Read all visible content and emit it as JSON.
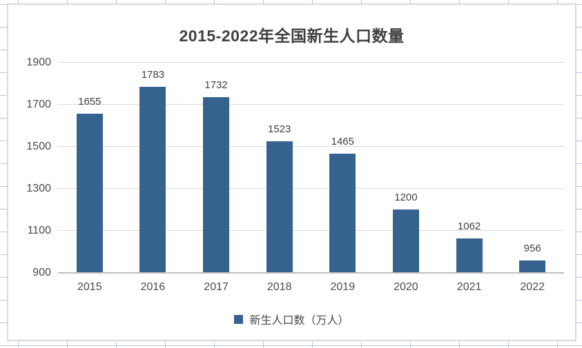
{
  "sheet": {
    "type": "excel-worksheet-background"
  },
  "chart": {
    "title": "2015-2022年全国新生人口数量",
    "legend_label": "新生人口数（万人）",
    "colors": {
      "bar": "#35628F",
      "title_text": "#404040",
      "axis_text": "#4A4A4A",
      "data_label_text": "#404040",
      "plot_gridline": "#D9D9D9",
      "axis_line": "#BFBFBF",
      "chart_border": "#D9D9D9",
      "sheet_gridline": "#B9C3DB"
    }
  },
  "chart_data": {
    "type": "bar",
    "title": "2015-2022年全国新生人口数量",
    "categories": [
      "2015",
      "2016",
      "2017",
      "2018",
      "2019",
      "2020",
      "2021",
      "2022"
    ],
    "values": [
      1655,
      1783,
      1732,
      1523,
      1465,
      1200,
      1062,
      956
    ],
    "series": [
      {
        "name": "新生人口数（万人）",
        "values": [
          1655,
          1783,
          1732,
          1523,
          1465,
          1200,
          1062,
          956
        ]
      }
    ],
    "xlabel": "",
    "ylabel": "",
    "ylim": [
      900,
      1900
    ],
    "yticks": [
      1900,
      1700,
      1500,
      1300,
      1100,
      900
    ],
    "grid": true,
    "data_labels": true,
    "legend_position": "bottom"
  }
}
